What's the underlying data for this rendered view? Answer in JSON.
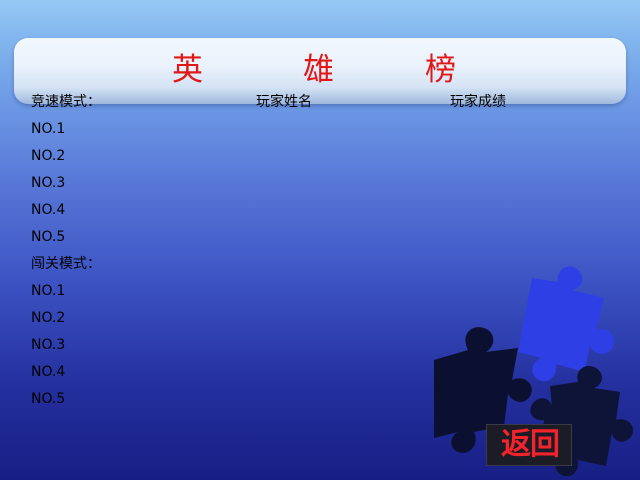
{
  "title": {
    "chars": [
      "英",
      "雄",
      "榜"
    ]
  },
  "columns": {
    "player_name": "玩家姓名",
    "player_score": "玩家成绩"
  },
  "speed_mode": {
    "label": "竞速模式：",
    "ranks": [
      "NO.1",
      "NO.2",
      "NO.3",
      "NO.4",
      "NO.5"
    ]
  },
  "level_mode": {
    "label": "闯关模式：",
    "ranks": [
      "NO.1",
      "NO.2",
      "NO.3",
      "NO.4",
      "NO.5"
    ]
  },
  "back_button": {
    "label": "返回"
  },
  "colors": {
    "title": "#e01818",
    "back_label": "#f2232a",
    "puzzle_blue": "#2f3fe6",
    "puzzle_dark": "#0b1030"
  },
  "icons": {
    "decoration": "puzzle-pieces"
  }
}
